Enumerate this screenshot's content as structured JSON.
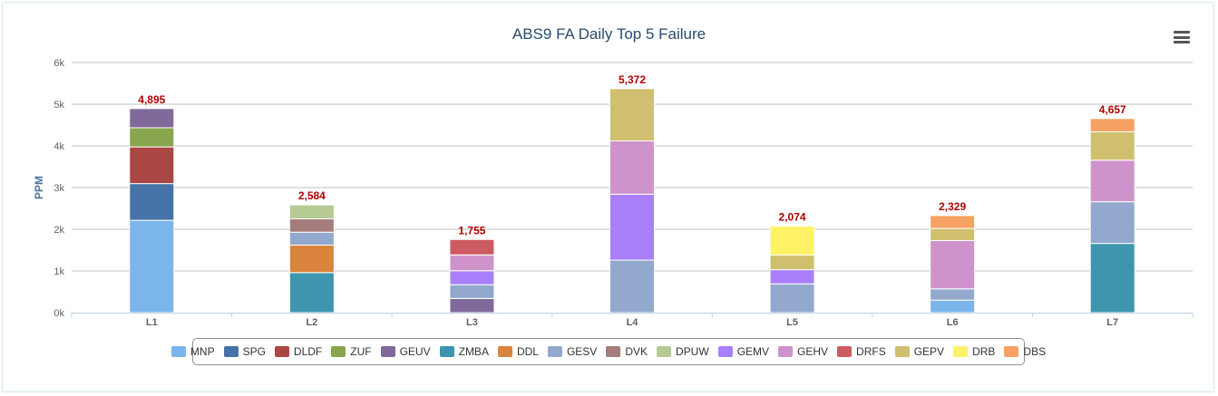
{
  "chart_data": {
    "type": "bar",
    "stacked": true,
    "title": "ABS9 FA Daily Top 5 Failure",
    "xlabel": "",
    "ylabel": "PPM",
    "ylim": [
      0,
      6000
    ],
    "yticks": [
      "0k",
      "1k",
      "2k",
      "3k",
      "4k",
      "5k",
      "6k"
    ],
    "categories": [
      "L1",
      "L2",
      "L3",
      "L4",
      "L5",
      "L6",
      "L7"
    ],
    "totals": [
      "4,895",
      "2,584",
      "1,755",
      "5,372",
      "2,074",
      "2,329",
      "4,657"
    ],
    "grid": true,
    "legend_position": "bottom",
    "series": [
      {
        "name": "MNP",
        "color": "#7cb5ec",
        "values": [
          2215,
          0,
          0,
          0,
          0,
          300,
          0
        ]
      },
      {
        "name": "SPG",
        "color": "#4572a7",
        "values": [
          880,
          0,
          0,
          0,
          0,
          0,
          0
        ]
      },
      {
        "name": "DLDF",
        "color": "#aa4643",
        "values": [
          880,
          0,
          0,
          0,
          0,
          0,
          0
        ]
      },
      {
        "name": "ZUF",
        "color": "#89a54e",
        "values": [
          460,
          0,
          0,
          0,
          0,
          0,
          0
        ]
      },
      {
        "name": "GEUV",
        "color": "#80699b",
        "values": [
          460,
          0,
          340,
          0,
          0,
          0,
          0
        ]
      },
      {
        "name": "ZMBA",
        "color": "#3d96ae",
        "values": [
          0,
          960,
          0,
          0,
          0,
          0,
          1660
        ]
      },
      {
        "name": "DDL",
        "color": "#db843d",
        "values": [
          0,
          660,
          0,
          0,
          0,
          0,
          0
        ]
      },
      {
        "name": "GESV",
        "color": "#92a8cd",
        "values": [
          0,
          310,
          330,
          1260,
          690,
          270,
          1000
        ]
      },
      {
        "name": "DVK",
        "color": "#a47d7c",
        "values": [
          0,
          320,
          0,
          0,
          0,
          0,
          0
        ]
      },
      {
        "name": "DPUW",
        "color": "#b5ca92",
        "values": [
          0,
          334,
          0,
          0,
          0,
          0,
          0
        ]
      },
      {
        "name": "GEMV",
        "color": "#a97ffb",
        "values": [
          0,
          0,
          335,
          1580,
          340,
          0,
          0
        ]
      },
      {
        "name": "GEHV",
        "color": "#cf93cb",
        "values": [
          0,
          0,
          380,
          1280,
          0,
          1160,
          997
        ]
      },
      {
        "name": "DRFS",
        "color": "#cd5b62",
        "values": [
          0,
          0,
          370,
          0,
          0,
          0,
          0
        ]
      },
      {
        "name": "GEPV",
        "color": "#cfbf6f",
        "values": [
          0,
          0,
          0,
          1252,
          350,
          290,
          680
        ]
      },
      {
        "name": "DRB",
        "color": "#fff267",
        "values": [
          0,
          0,
          0,
          0,
          694,
          0,
          0
        ]
      },
      {
        "name": "DBS",
        "color": "#f6a262",
        "values": [
          0,
          0,
          0,
          0,
          0,
          309,
          320
        ]
      }
    ]
  }
}
